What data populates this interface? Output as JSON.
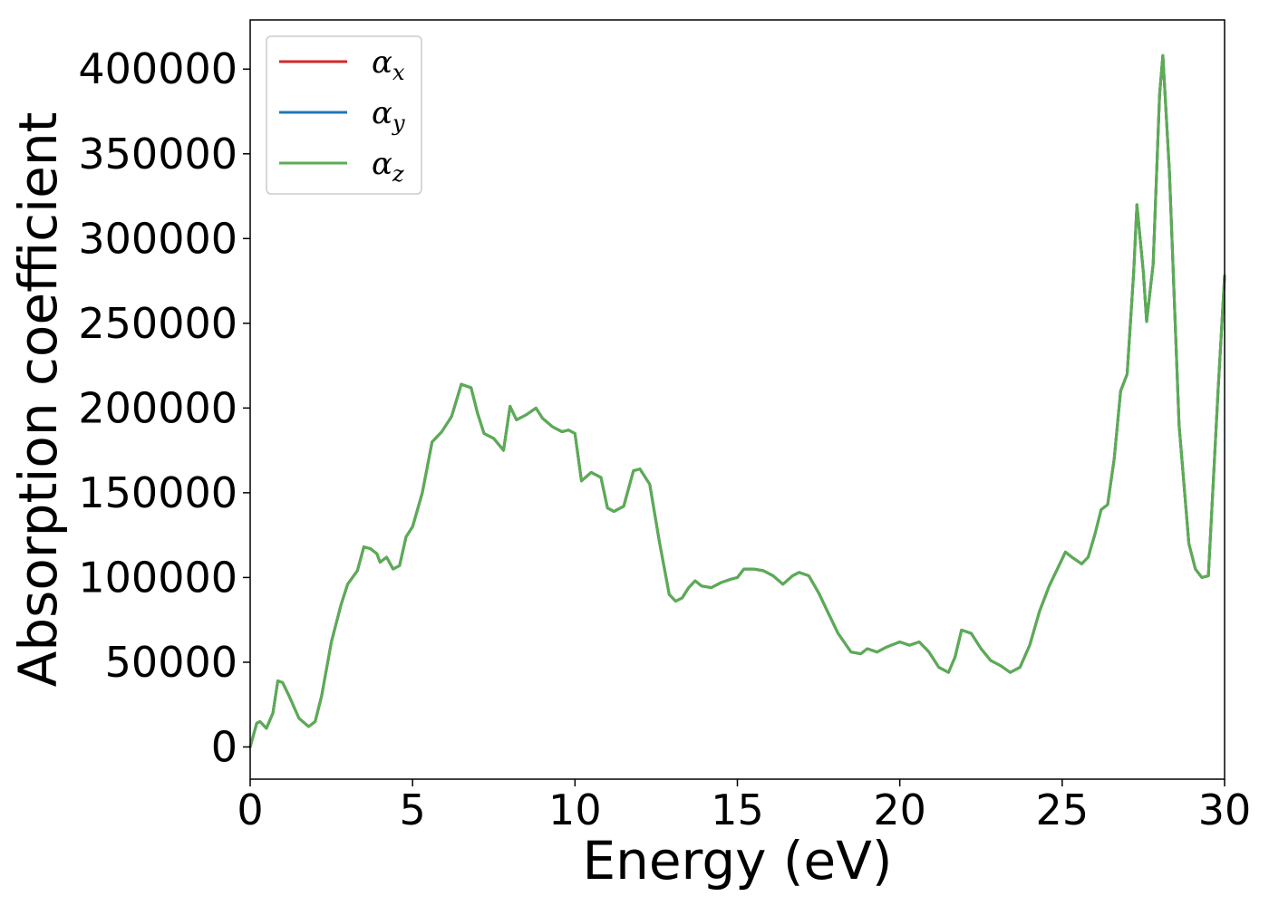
{
  "chart_data": {
    "type": "line",
    "xlabel": "Energy (eV)",
    "ylabel": "Absorption coefficient",
    "xlim": [
      0,
      30
    ],
    "ylim": [
      -19000,
      429000
    ],
    "xticks": [
      0,
      5,
      10,
      15,
      20,
      25,
      30
    ],
    "xtick_labels": [
      "0",
      "5",
      "10",
      "15",
      "20",
      "25",
      "30"
    ],
    "yticks": [
      0,
      50000,
      100000,
      150000,
      200000,
      250000,
      300000,
      350000,
      400000
    ],
    "ytick_labels": [
      "0",
      "50000",
      "100000",
      "150000",
      "200000",
      "250000",
      "300000",
      "350000",
      "400000"
    ],
    "grid": false,
    "legend_position": "top-left",
    "x": [
      0,
      0.2,
      0.3,
      0.5,
      0.7,
      0.85,
      1.0,
      1.2,
      1.5,
      1.8,
      2.0,
      2.2,
      2.5,
      2.8,
      3.0,
      3.3,
      3.5,
      3.7,
      3.9,
      4.0,
      4.2,
      4.4,
      4.6,
      4.8,
      5.0,
      5.3,
      5.6,
      5.9,
      6.2,
      6.5,
      6.8,
      7.0,
      7.2,
      7.5,
      7.8,
      8.0,
      8.2,
      8.5,
      8.8,
      9.0,
      9.3,
      9.6,
      9.8,
      10.0,
      10.2,
      10.5,
      10.8,
      11.0,
      11.2,
      11.5,
      11.8,
      12.0,
      12.3,
      12.6,
      12.9,
      13.1,
      13.3,
      13.5,
      13.7,
      13.9,
      14.2,
      14.5,
      14.8,
      15.0,
      15.2,
      15.5,
      15.8,
      16.1,
      16.4,
      16.7,
      16.9,
      17.2,
      17.5,
      17.8,
      18.1,
      18.5,
      18.8,
      19.0,
      19.3,
      19.6,
      20.0,
      20.3,
      20.6,
      20.9,
      21.2,
      21.5,
      21.7,
      21.9,
      22.2,
      22.5,
      22.8,
      23.1,
      23.4,
      23.7,
      24.0,
      24.3,
      24.6,
      24.9,
      25.1,
      25.3,
      25.6,
      25.8,
      26.0,
      26.2,
      26.4,
      26.6,
      26.8,
      27.0,
      27.2,
      27.3,
      27.5,
      27.6,
      27.8,
      28.0,
      28.1,
      28.3,
      28.6,
      28.9,
      29.1,
      29.3,
      29.5,
      29.8,
      30.0
    ],
    "series": [
      {
        "name": "αx",
        "label_symbol": "α",
        "label_subscript": "x",
        "color": "#d62728",
        "values": [
          0,
          14000,
          15000,
          11000,
          20000,
          39000,
          38000,
          30000,
          17000,
          12000,
          15000,
          30000,
          62000,
          84000,
          96000,
          104000,
          118000,
          117000,
          114000,
          109000,
          112000,
          105000,
          107000,
          124000,
          130000,
          150000,
          180000,
          186000,
          195000,
          214000,
          212000,
          197000,
          185000,
          182000,
          175000,
          201000,
          193000,
          196000,
          200000,
          194000,
          189000,
          186000,
          187000,
          185000,
          157000,
          162000,
          159000,
          141000,
          139000,
          142000,
          163000,
          164000,
          155000,
          121000,
          90000,
          86000,
          88000,
          94000,
          98000,
          95000,
          94000,
          97000,
          99000,
          100000,
          105000,
          105000,
          104000,
          101000,
          96000,
          101000,
          103000,
          101000,
          91000,
          79000,
          67000,
          56000,
          55000,
          58000,
          56000,
          59000,
          62000,
          60000,
          62000,
          56000,
          47000,
          44000,
          53000,
          69000,
          67000,
          58000,
          51000,
          48000,
          44000,
          47000,
          60000,
          80000,
          95000,
          107000,
          115000,
          112000,
          108000,
          112000,
          125000,
          140000,
          143000,
          170000,
          210000,
          220000,
          280000,
          320000,
          280000,
          251000,
          285000,
          385000,
          408000,
          340000,
          190000,
          120000,
          105000,
          100000,
          101000,
          210000,
          278000
        ]
      },
      {
        "name": "αy",
        "label_symbol": "α",
        "label_subscript": "y",
        "color": "#1f77b4",
        "values": [
          0,
          14000,
          15000,
          11000,
          20000,
          39000,
          38000,
          30000,
          17000,
          12000,
          15000,
          30000,
          62000,
          84000,
          96000,
          104000,
          118000,
          117000,
          114000,
          109000,
          112000,
          105000,
          107000,
          124000,
          130000,
          150000,
          180000,
          186000,
          195000,
          214000,
          212000,
          197000,
          185000,
          182000,
          175000,
          201000,
          193000,
          196000,
          200000,
          194000,
          189000,
          186000,
          187000,
          185000,
          157000,
          162000,
          159000,
          141000,
          139000,
          142000,
          163000,
          164000,
          155000,
          121000,
          90000,
          86000,
          88000,
          94000,
          98000,
          95000,
          94000,
          97000,
          99000,
          100000,
          105000,
          105000,
          104000,
          101000,
          96000,
          101000,
          103000,
          101000,
          91000,
          79000,
          67000,
          56000,
          55000,
          58000,
          56000,
          59000,
          62000,
          60000,
          62000,
          56000,
          47000,
          44000,
          53000,
          69000,
          67000,
          58000,
          51000,
          48000,
          44000,
          47000,
          60000,
          80000,
          95000,
          107000,
          115000,
          112000,
          108000,
          112000,
          125000,
          140000,
          143000,
          170000,
          210000,
          220000,
          280000,
          320000,
          280000,
          251000,
          285000,
          385000,
          408000,
          340000,
          190000,
          120000,
          105000,
          100000,
          101000,
          210000,
          278000
        ]
      },
      {
        "name": "αz",
        "label_symbol": "α",
        "label_subscript": "z",
        "color": "#5aad52",
        "values": [
          0,
          14000,
          15000,
          11000,
          20000,
          39000,
          38000,
          30000,
          17000,
          12000,
          15000,
          30000,
          62000,
          84000,
          96000,
          104000,
          118000,
          117000,
          114000,
          109000,
          112000,
          105000,
          107000,
          124000,
          130000,
          150000,
          180000,
          186000,
          195000,
          214000,
          212000,
          197000,
          185000,
          182000,
          175000,
          201000,
          193000,
          196000,
          200000,
          194000,
          189000,
          186000,
          187000,
          185000,
          157000,
          162000,
          159000,
          141000,
          139000,
          142000,
          163000,
          164000,
          155000,
          121000,
          90000,
          86000,
          88000,
          94000,
          98000,
          95000,
          94000,
          97000,
          99000,
          100000,
          105000,
          105000,
          104000,
          101000,
          96000,
          101000,
          103000,
          101000,
          91000,
          79000,
          67000,
          56000,
          55000,
          58000,
          56000,
          59000,
          62000,
          60000,
          62000,
          56000,
          47000,
          44000,
          53000,
          69000,
          67000,
          58000,
          51000,
          48000,
          44000,
          47000,
          60000,
          80000,
          95000,
          107000,
          115000,
          112000,
          108000,
          112000,
          125000,
          140000,
          143000,
          170000,
          210000,
          220000,
          280000,
          320000,
          280000,
          251000,
          285000,
          385000,
          408000,
          340000,
          190000,
          120000,
          105000,
          100000,
          101000,
          210000,
          278000
        ]
      }
    ]
  }
}
